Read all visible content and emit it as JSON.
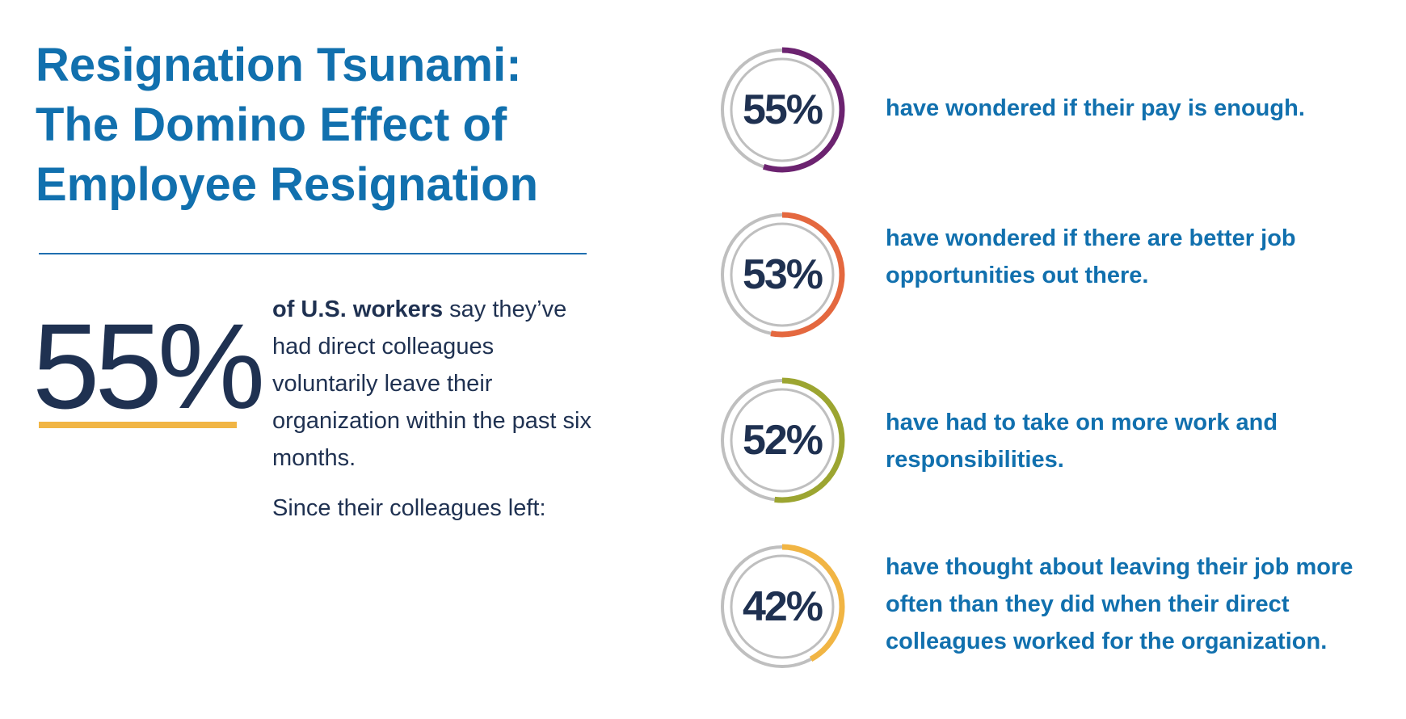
{
  "title": {
    "line1": "Resignation Tsunami:",
    "line2": "The Domino Effect of",
    "line3": "Employee Resignation"
  },
  "headline": {
    "value": "55%",
    "bold_prefix": "of U.S. workers",
    "text": " say they’ve had direct colleagues voluntarily leave their organization within the past six months.",
    "lead_in": "Since their colleagues left:"
  },
  "colors": {
    "title": "#1170ae",
    "navy": "#1f3151",
    "track": "#bfbfbf",
    "underline": "#f1b544"
  },
  "chart_data": {
    "type": "pie",
    "title": "",
    "style": "ring-progress",
    "items": [
      {
        "label": "55%",
        "value": 55,
        "color": "#6c2370",
        "text": "have wondered if their pay is enough."
      },
      {
        "label": "53%",
        "value": 53,
        "color": "#e4683f",
        "text": "have wondered if there are better job opportunities out there."
      },
      {
        "label": "52%",
        "value": 52,
        "color": "#9ca531",
        "text": "have had to take on more work and responsibilities."
      },
      {
        "label": "42%",
        "value": 42,
        "color": "#f1b544",
        "text": "have thought about leaving their job more often than they did when their direct colleagues worked for the organization."
      }
    ]
  }
}
